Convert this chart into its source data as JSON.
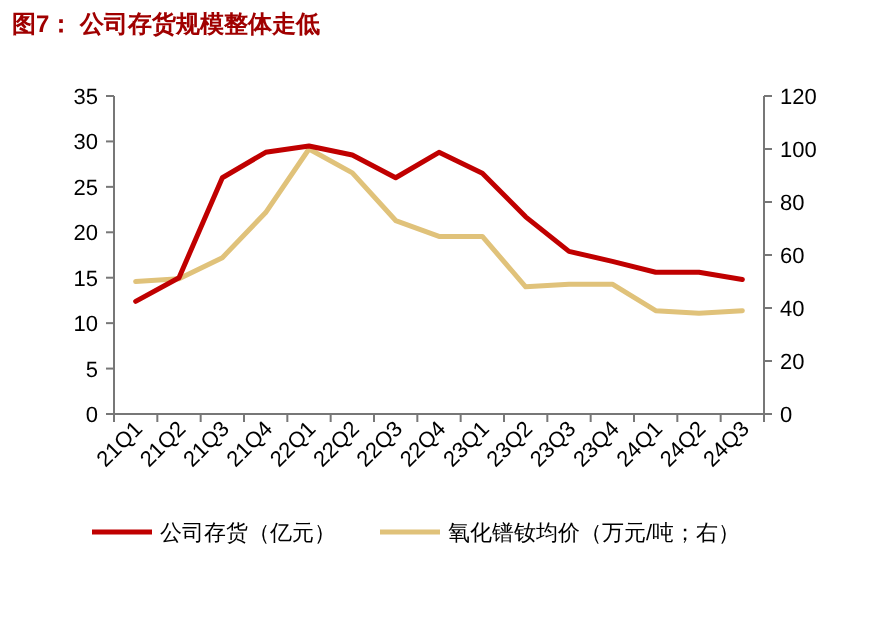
{
  "chart_data": {
    "type": "line",
    "title": "图7：  公司存货规模整体走低",
    "categories": [
      "21Q1",
      "21Q2",
      "21Q3",
      "21Q4",
      "22Q1",
      "22Q2",
      "22Q3",
      "22Q4",
      "23Q1",
      "23Q2",
      "23Q3",
      "23Q4",
      "24Q1",
      "24Q2",
      "24Q3"
    ],
    "series": [
      {
        "name": "公司存货（亿元）",
        "color": "#c00000",
        "values": [
          12.4,
          15.0,
          26.0,
          28.8,
          29.5,
          28.5,
          26.0,
          28.8,
          26.5,
          21.7,
          17.9,
          16.8,
          15.6,
          15.6,
          14.8
        ]
      },
      {
        "name": "氧化镨钕均价（万元/吨；右）",
        "color": "#e0c27a",
        "axis": "y2",
        "values": [
          50,
          51,
          59,
          76,
          100,
          91,
          73,
          67,
          67,
          48,
          49,
          49,
          39,
          38,
          39
        ]
      }
    ],
    "ylim": [
      0,
      35
    ],
    "yticks": [
      0,
      5,
      10,
      15,
      20,
      25,
      30,
      35
    ],
    "y2lim": [
      0,
      120
    ],
    "y2ticks": [
      0,
      20,
      40,
      60,
      80,
      100,
      120
    ],
    "legend": "bottom",
    "grid": false
  }
}
